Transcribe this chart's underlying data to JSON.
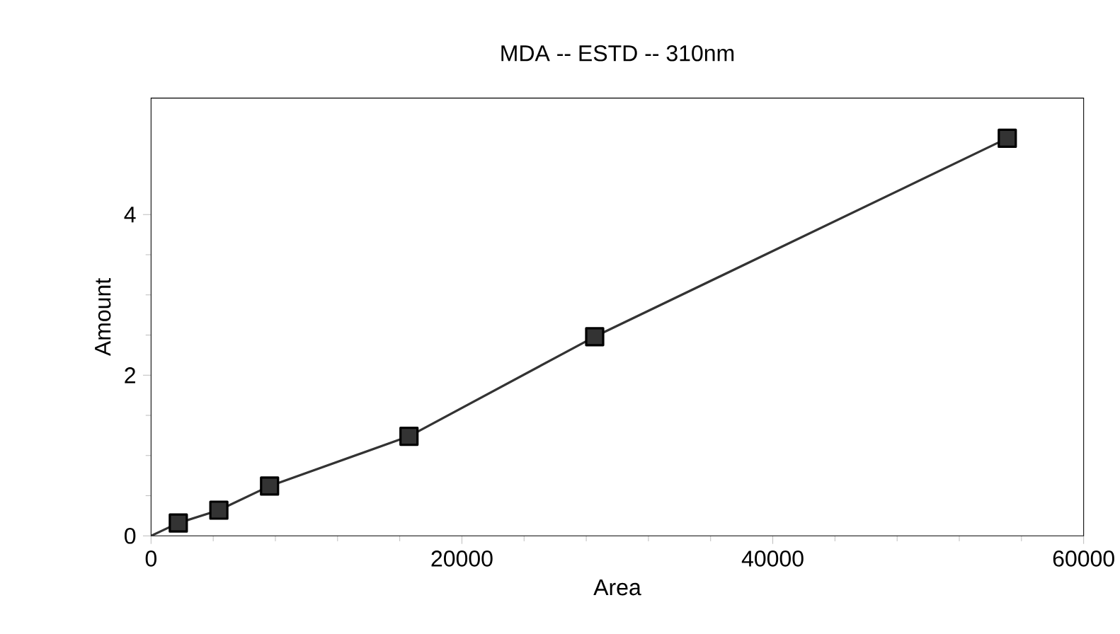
{
  "chart_data": {
    "type": "line",
    "title": "MDA -- ESTD -- 310nm",
    "xlabel": "Area",
    "ylabel": "Amount",
    "xlim": [
      0,
      60000
    ],
    "ylim": [
      0,
      5.45
    ],
    "xticks": [
      0,
      20000,
      40000,
      60000
    ],
    "yticks": [
      0,
      2,
      4
    ],
    "grid": false,
    "series": [
      {
        "color": "#333333",
        "marker": "square",
        "x": [
          1753,
          4363,
          7625,
          16595,
          28542,
          55087
        ],
        "values": [
          0.16,
          0.32,
          0.62,
          1.24,
          2.48,
          4.95
        ]
      },
      {
        "type": "line",
        "color": "#333333",
        "marker": "none",
        "x": [
          0,
          1753
        ],
        "values": [
          0,
          0.16
        ]
      }
    ]
  }
}
